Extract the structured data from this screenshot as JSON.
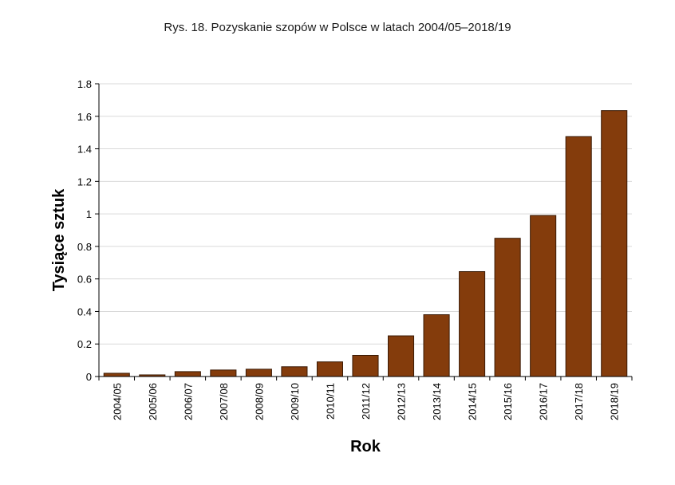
{
  "chart_data": {
    "type": "bar",
    "title": "Rys. 18. Pozyskanie szopów w Polsce w latach 2004/05–2018/19",
    "xlabel": "Rok",
    "ylabel": "Tysiące sztuk",
    "categories": [
      "2004/05",
      "2005/06",
      "2006/07",
      "2007/08",
      "2008/09",
      "2009/10",
      "2010/11",
      "2011/12",
      "2012/13",
      "2013/14",
      "2014/15",
      "2015/16",
      "2016/17",
      "2017/18",
      "2018/19"
    ],
    "values": [
      0.02,
      0.01,
      0.03,
      0.04,
      0.045,
      0.06,
      0.09,
      0.13,
      0.25,
      0.38,
      0.645,
      0.85,
      0.99,
      1.475,
      1.635
    ],
    "ylim": [
      0,
      1.8
    ],
    "yticks": [
      "0",
      "0.2",
      "0.4",
      "0.6",
      "0.8",
      "1",
      "1.2",
      "1.4",
      "1.6",
      "1.8"
    ],
    "grid": true,
    "bar_color": "#843c0c",
    "bar_edge_color": "#3a1a05"
  }
}
